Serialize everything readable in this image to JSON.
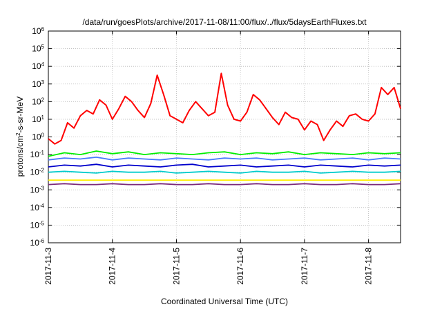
{
  "chart_data": {
    "type": "line",
    "title": "/data/run/goesPlots/archive/2017-11-08/11:00/flux/../flux/5daysEarthFluxes.txt",
    "xlabel": "Coordinated Universal Time (UTC)",
    "ylabel_parts": {
      "a": "protons/cm",
      "sup": "2",
      "b": "-s-sr-MeV"
    },
    "y_scale": "log",
    "ylim": [
      -6,
      6
    ],
    "y_ticks": [
      {
        "exp": 6,
        "base": "10",
        "sup": "6"
      },
      {
        "exp": 5,
        "base": "10",
        "sup": "5"
      },
      {
        "exp": 4,
        "base": "10",
        "sup": "4"
      },
      {
        "exp": 3,
        "base": "10",
        "sup": "3"
      },
      {
        "exp": 2,
        "base": "10",
        "sup": "2"
      },
      {
        "exp": 1,
        "base": "10",
        "sup": "1"
      },
      {
        "exp": 0,
        "base": "10",
        "sup": "0"
      },
      {
        "exp": -1,
        "base": "10",
        "sup": "-1"
      },
      {
        "exp": -2,
        "base": "10",
        "sup": "-2"
      },
      {
        "exp": -3,
        "base": "10",
        "sup": "-3"
      },
      {
        "exp": -4,
        "base": "10",
        "sup": "-4"
      },
      {
        "exp": -5,
        "base": "10",
        "sup": "-5"
      },
      {
        "exp": -6,
        "base": "10",
        "sup": "-6"
      }
    ],
    "xlim": [
      "2017-11-03",
      "2017-11-08 12:00"
    ],
    "x_ticks": [
      "2017-11-3",
      "2017-11-4",
      "2017-11-5",
      "2017-11-6",
      "2017-11-7",
      "2017-11-8"
    ],
    "grid": true,
    "series": [
      {
        "color": "#ff0000",
        "x": [
          0.0,
          0.1,
          0.2,
          0.3,
          0.4,
          0.5,
          0.6,
          0.7,
          0.8,
          0.9,
          1.0,
          1.1,
          1.2,
          1.3,
          1.4,
          1.5,
          1.6,
          1.7,
          1.8,
          1.9,
          2.0,
          2.1,
          2.2,
          2.3,
          2.4,
          2.5,
          2.6,
          2.7,
          2.8,
          2.9,
          3.0,
          3.1,
          3.2,
          3.3,
          3.4,
          3.5,
          3.6,
          3.7,
          3.8,
          3.9,
          4.0,
          4.1,
          4.2,
          4.3,
          4.4,
          4.5,
          4.6,
          4.7,
          4.8,
          4.9,
          5.0,
          5.1,
          5.2,
          5.3,
          5.4,
          5.5
        ],
        "log10_values": [
          -0.1,
          -0.4,
          -0.2,
          0.8,
          0.5,
          1.2,
          1.5,
          1.3,
          2.1,
          1.8,
          1.0,
          1.6,
          2.3,
          2.0,
          1.5,
          1.1,
          1.9,
          3.5,
          2.4,
          1.2,
          1.0,
          0.8,
          1.5,
          2.0,
          1.6,
          1.2,
          1.4,
          3.6,
          1.8,
          1.0,
          0.9,
          1.4,
          2.4,
          2.1,
          1.6,
          1.1,
          0.7,
          1.4,
          1.1,
          1.0,
          0.4,
          0.9,
          0.7,
          -0.2,
          0.4,
          0.9,
          0.6,
          1.2,
          1.3,
          1.0,
          0.9,
          1.3,
          2.8,
          2.4,
          2.8,
          1.6
        ]
      },
      {
        "color": "#00ee00",
        "x": [
          0.0,
          0.25,
          0.5,
          0.75,
          1.0,
          1.25,
          1.5,
          1.75,
          2.0,
          2.25,
          2.5,
          2.75,
          3.0,
          3.25,
          3.5,
          3.75,
          4.0,
          4.25,
          4.5,
          4.75,
          5.0,
          5.25,
          5.5
        ],
        "log10_values": [
          -1.1,
          -0.9,
          -1.0,
          -0.8,
          -0.95,
          -0.85,
          -1.0,
          -0.9,
          -0.95,
          -1.0,
          -0.9,
          -0.85,
          -1.0,
          -0.9,
          -0.95,
          -0.85,
          -1.0,
          -0.9,
          -0.95,
          -1.0,
          -0.9,
          -0.95,
          -0.9
        ]
      },
      {
        "color": "#4a7bff",
        "x": [
          0.0,
          0.25,
          0.5,
          0.75,
          1.0,
          1.25,
          1.5,
          1.75,
          2.0,
          2.25,
          2.5,
          2.75,
          3.0,
          3.25,
          3.5,
          3.75,
          4.0,
          4.25,
          4.5,
          4.75,
          5.0,
          5.25,
          5.5
        ],
        "log10_values": [
          -1.3,
          -1.2,
          -1.25,
          -1.15,
          -1.3,
          -1.2,
          -1.25,
          -1.3,
          -1.2,
          -1.25,
          -1.3,
          -1.2,
          -1.25,
          -1.2,
          -1.3,
          -1.25,
          -1.2,
          -1.3,
          -1.25,
          -1.2,
          -1.3,
          -1.2,
          -1.25
        ]
      },
      {
        "color": "#0000cc",
        "x": [
          0.0,
          0.25,
          0.5,
          0.75,
          1.0,
          1.25,
          1.5,
          1.75,
          2.0,
          2.25,
          2.5,
          2.75,
          3.0,
          3.25,
          3.5,
          3.75,
          4.0,
          4.25,
          4.5,
          4.75,
          5.0,
          5.25,
          5.5
        ],
        "log10_values": [
          -1.7,
          -1.6,
          -1.65,
          -1.55,
          -1.7,
          -1.6,
          -1.65,
          -1.7,
          -1.6,
          -1.55,
          -1.7,
          -1.65,
          -1.6,
          -1.7,
          -1.65,
          -1.6,
          -1.7,
          -1.6,
          -1.65,
          -1.7,
          -1.6,
          -1.65,
          -1.6
        ]
      },
      {
        "color": "#00cccc",
        "x": [
          0.0,
          0.25,
          0.5,
          0.75,
          1.0,
          1.25,
          1.5,
          1.75,
          2.0,
          2.25,
          2.5,
          2.75,
          3.0,
          3.25,
          3.5,
          3.75,
          4.0,
          4.25,
          4.5,
          4.75,
          5.0,
          5.25,
          5.5
        ],
        "log10_values": [
          -2.0,
          -1.95,
          -2.0,
          -2.05,
          -1.95,
          -2.0,
          -2.0,
          -1.95,
          -2.05,
          -2.0,
          -1.95,
          -2.0,
          -2.05,
          -1.95,
          -2.0,
          -2.0,
          -1.95,
          -2.05,
          -2.0,
          -1.95,
          -2.0,
          -2.0,
          -1.95
        ]
      },
      {
        "color": "#ffee00",
        "x": [
          0.0,
          0.5,
          1.0,
          1.5,
          2.0,
          2.5,
          3.0,
          3.5,
          4.0,
          4.5,
          5.0,
          5.5
        ],
        "log10_values": [
          -2.45,
          -2.45,
          -2.45,
          -2.45,
          -2.45,
          -2.45,
          -2.45,
          -2.45,
          -2.45,
          -2.45,
          -2.45,
          -2.45
        ]
      },
      {
        "color": "#7b2a7b",
        "x": [
          0.0,
          0.25,
          0.5,
          0.75,
          1.0,
          1.25,
          1.5,
          1.75,
          2.0,
          2.25,
          2.5,
          2.75,
          3.0,
          3.25,
          3.5,
          3.75,
          4.0,
          4.25,
          4.5,
          4.75,
          5.0,
          5.25,
          5.5
        ],
        "log10_values": [
          -2.7,
          -2.65,
          -2.7,
          -2.7,
          -2.65,
          -2.7,
          -2.7,
          -2.65,
          -2.7,
          -2.7,
          -2.65,
          -2.7,
          -2.7,
          -2.65,
          -2.7,
          -2.7,
          -2.65,
          -2.7,
          -2.7,
          -2.65,
          -2.7,
          -2.7,
          -2.65
        ]
      }
    ]
  }
}
